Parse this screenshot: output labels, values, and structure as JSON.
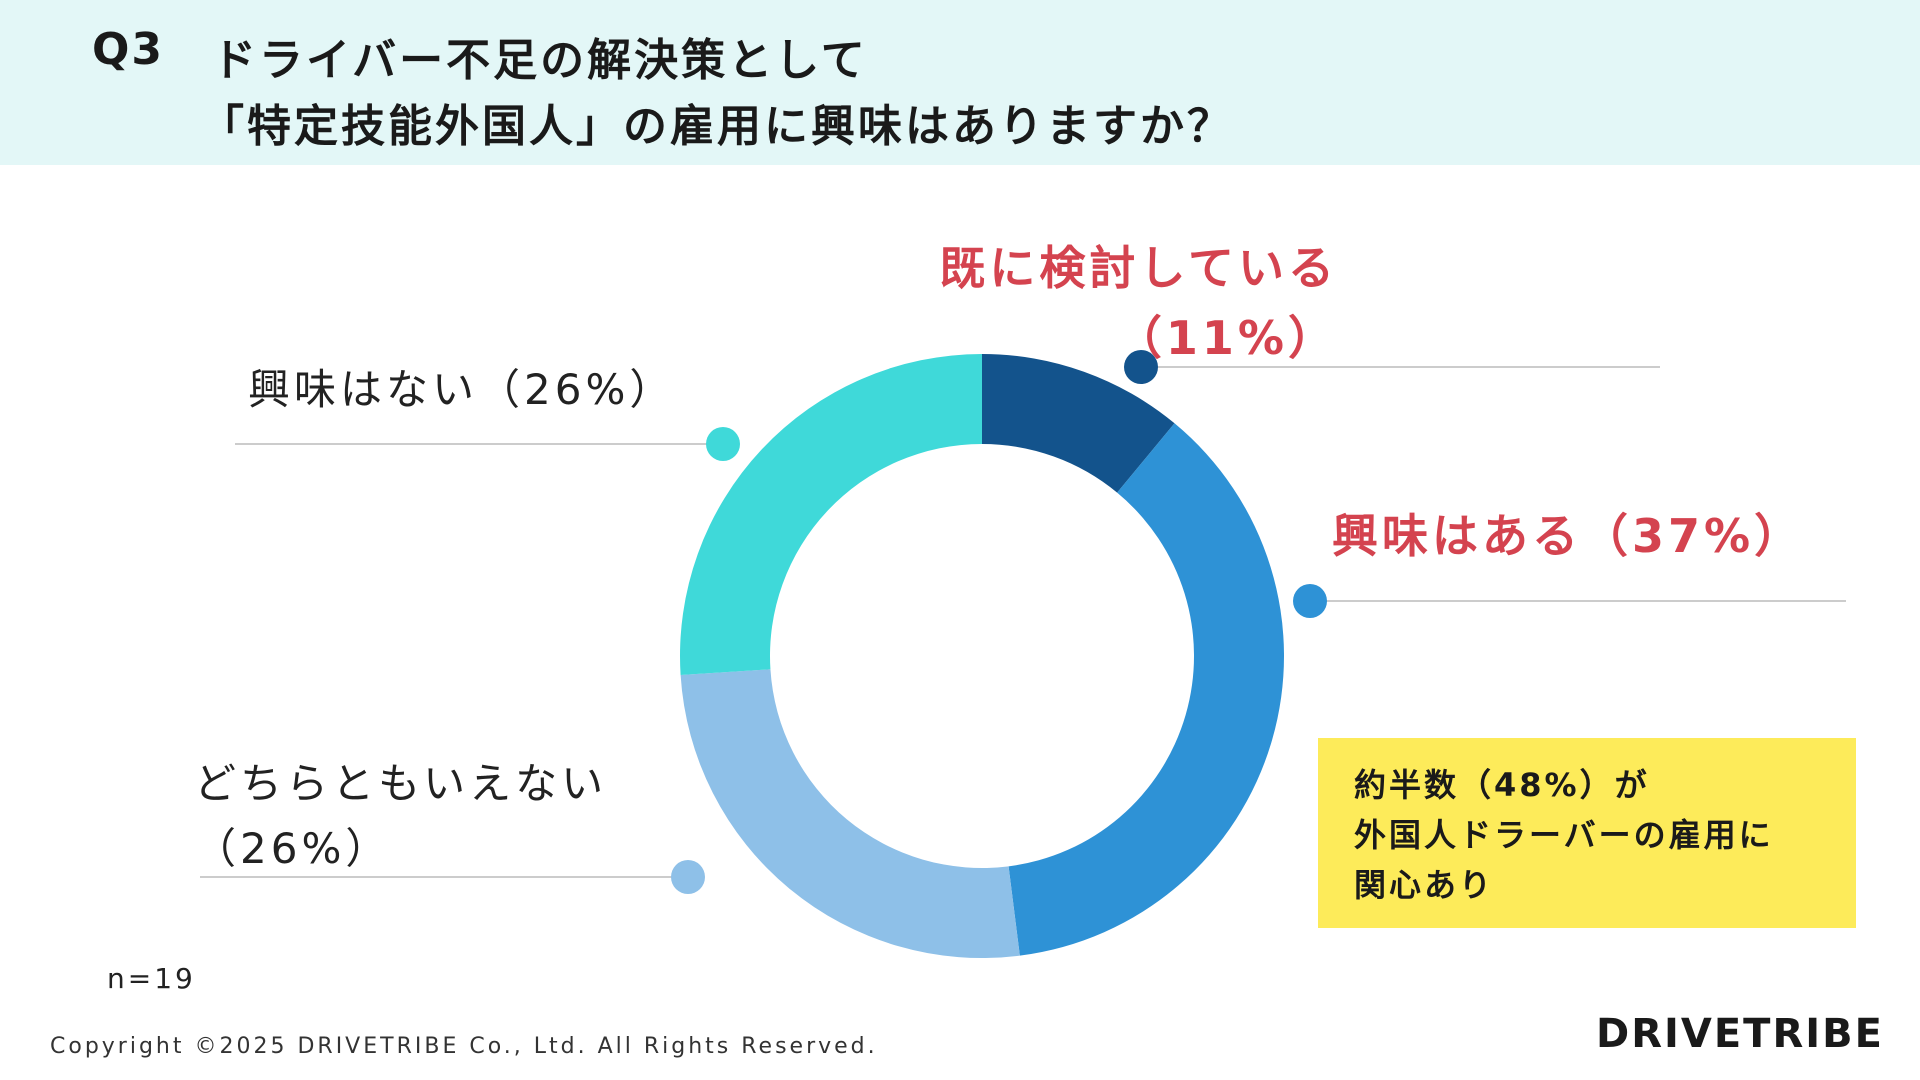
{
  "header": {
    "q_number": "Q3",
    "title_line1": "ドライバー不足の解決策として",
    "title_line2": "「特定技能外国人」の雇用に興味はありますか？"
  },
  "chart_data": {
    "type": "pie",
    "donut": true,
    "slices": [
      {
        "label_lines": [
          "既に検討している",
          "（11%）"
        ],
        "value": 11,
        "color": "#13538c"
      },
      {
        "label_lines": [
          "興味はある（37%）"
        ],
        "value": 37,
        "color": "#2e92d6"
      },
      {
        "label_lines": [
          "どちらともいえない",
          "（26%）"
        ],
        "value": 26,
        "color": "#8ec0e8"
      },
      {
        "label_lines": [
          "興味はない（26%）"
        ],
        "value": 26,
        "color": "#3fd9d9"
      }
    ],
    "annotation": [
      "約半数（48%）が",
      "外国人ドラーバーの雇用に",
      "関心あり"
    ],
    "sample_size": "n=19"
  },
  "colors": {
    "header_bg": "#e3f7f7",
    "highlight_text": "#d4434f",
    "callout_bg": "#fdeb5a",
    "leader_line": "#cccccc"
  },
  "footer": {
    "copyright": "Copyright ©2025 DRIVETRIBE Co., Ltd. All Rights Reserved.",
    "logo": "DRIVETRIBE"
  }
}
